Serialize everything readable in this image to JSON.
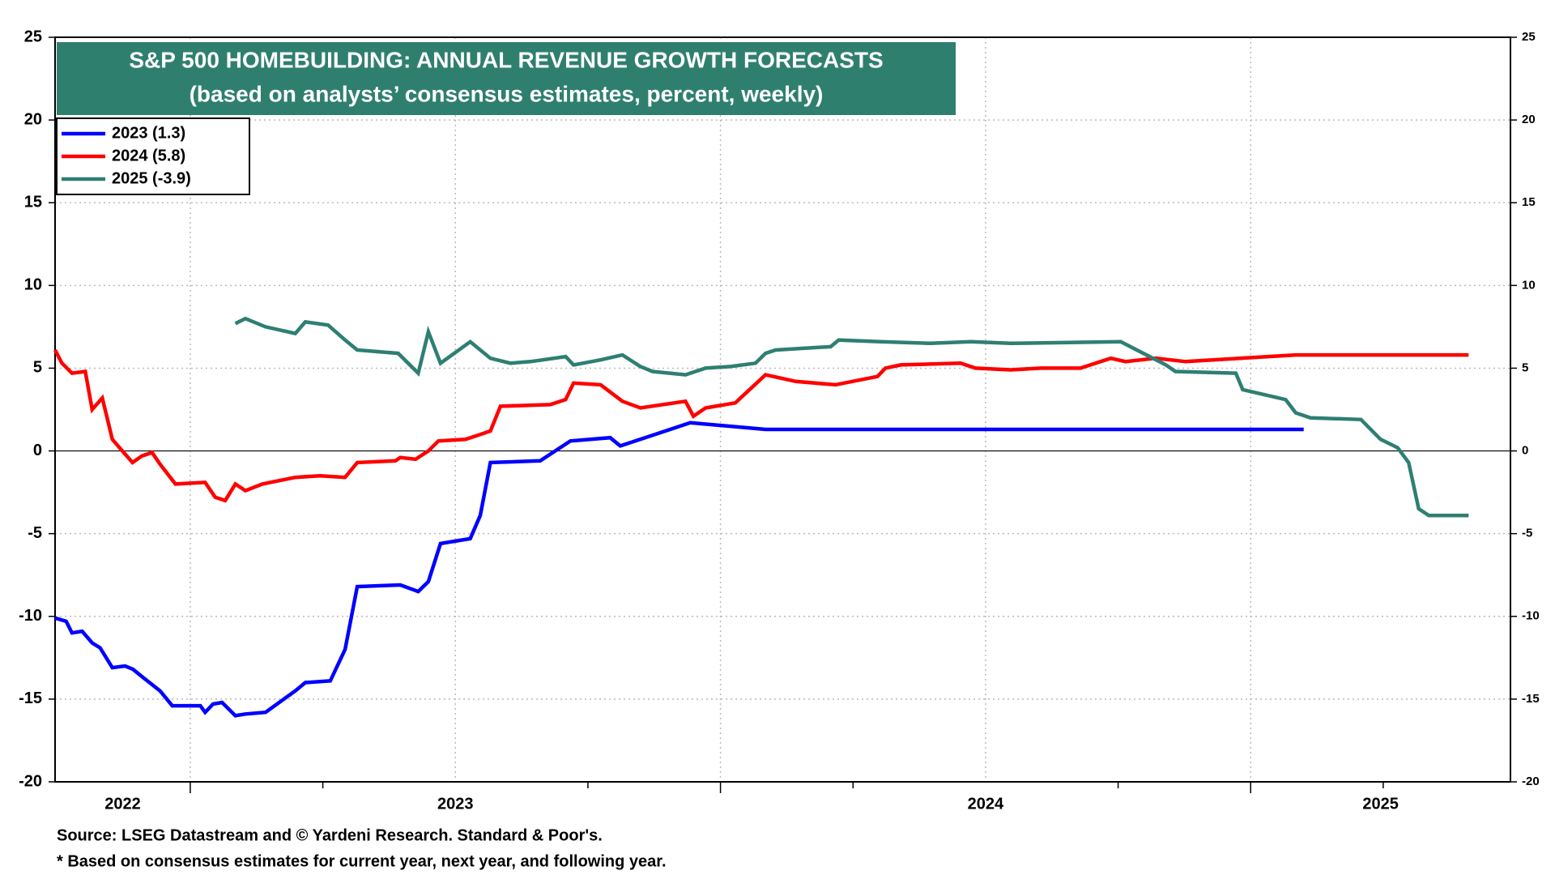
{
  "chart_data": {
    "type": "line",
    "title": "S&P 500 HOMEBUILDING: ANNUAL REVENUE GROWTH FORECASTS",
    "subtitle": "(based on analysts’ consensus estimates, percent, weekly)",
    "notes": [
      "Source: LSEG Datastream and © Yardeni Research. Standard & Poor's.",
      "* Based on consensus estimates for current year, next year, and following year."
    ],
    "xlim": [
      2022.745,
      2025.49
    ],
    "xticks": [
      2022,
      2023,
      2024,
      2025
    ],
    "xgrid": [
      2023,
      2023.5,
      2024,
      2024.5,
      2025
    ],
    "xminorticks": [
      2023.25,
      2023.75,
      2024.25,
      2024.75,
      2025.25
    ],
    "ylim": [
      -20,
      25
    ],
    "yticks": [
      -20,
      -15,
      -10,
      -5,
      0,
      5,
      10,
      15,
      20,
      25
    ],
    "y2lim": [
      -20,
      25
    ],
    "y2ticks": [
      -20,
      -15,
      -10,
      -5,
      0,
      5,
      10,
      15,
      20,
      25
    ],
    "grid": true,
    "legend": "top-left",
    "series": [
      {
        "name": "2023 (1.3)",
        "color": "#0000ff",
        "x": [
          2022.745,
          2022.766,
          2022.777,
          2022.796,
          2022.815,
          2022.83,
          2022.853,
          2022.877,
          2022.892,
          2022.911,
          2022.943,
          2022.966,
          2023.019,
          2023.028,
          2023.043,
          2023.06,
          2023.085,
          2023.104,
          2023.142,
          2023.198,
          2023.217,
          2023.264,
          2023.292,
          2023.315,
          2023.396,
          2023.43,
          2023.449,
          2023.472,
          2023.528,
          2023.547,
          2023.566,
          2023.66,
          2023.717,
          2023.792,
          2023.811,
          2023.858,
          2023.943,
          2024.085,
          2025.1
        ],
        "values": [
          -10.1,
          -10.3,
          -11.0,
          -10.9,
          -11.6,
          -11.9,
          -13.1,
          -13.0,
          -13.2,
          -13.7,
          -14.5,
          -15.4,
          -15.4,
          -15.8,
          -15.3,
          -15.2,
          -16.0,
          -15.9,
          -15.8,
          -14.5,
          -14.0,
          -13.9,
          -12.0,
          -8.2,
          -8.1,
          -8.5,
          -7.9,
          -5.6,
          -5.3,
          -3.9,
          -0.7,
          -0.6,
          0.6,
          0.8,
          0.3,
          0.8,
          1.7,
          1.3,
          1.3
        ]
      },
      {
        "name": "2024 (5.8)",
        "color": "#ff0000",
        "x": [
          2022.745,
          2022.758,
          2022.777,
          2022.802,
          2022.815,
          2022.834,
          2022.853,
          2022.872,
          2022.891,
          2022.909,
          2022.928,
          2022.943,
          2022.972,
          2023.028,
          2023.047,
          2023.066,
          2023.085,
          2023.104,
          2023.136,
          2023.198,
          2023.245,
          2023.292,
          2023.315,
          2023.387,
          2023.396,
          2023.425,
          2023.449,
          2023.468,
          2023.519,
          2023.538,
          2023.566,
          2023.585,
          2023.679,
          2023.708,
          2023.723,
          2023.774,
          2023.815,
          2023.849,
          2023.934,
          2023.949,
          2023.972,
          2024.028,
          2024.085,
          2024.142,
          2024.217,
          2024.296,
          2024.311,
          2024.34,
          2024.453,
          2024.481,
          2024.547,
          2024.604,
          2024.679,
          2024.736,
          2024.764,
          2024.821,
          2024.877,
          2025.085,
          2025.411
        ],
        "values": [
          6.1,
          5.3,
          4.7,
          4.8,
          2.5,
          3.2,
          0.7,
          0.0,
          -0.7,
          -0.3,
          -0.1,
          -0.8,
          -2.0,
          -1.9,
          -2.8,
          -3.0,
          -2.0,
          -2.4,
          -2.0,
          -1.6,
          -1.5,
          -1.6,
          -0.7,
          -0.6,
          -0.4,
          -0.5,
          0.0,
          0.6,
          0.7,
          0.9,
          1.2,
          2.7,
          2.8,
          3.1,
          4.1,
          4.0,
          3.0,
          2.6,
          3.0,
          2.1,
          2.6,
          2.9,
          4.6,
          4.2,
          4.0,
          4.5,
          5.0,
          5.2,
          5.3,
          5.0,
          4.9,
          5.0,
          5.0,
          5.6,
          5.4,
          5.6,
          5.4,
          5.8,
          5.8
        ]
      },
      {
        "name": "2025 (-3.9)",
        "color": "#2e7f72",
        "x": [
          2023.085,
          2023.104,
          2023.142,
          2023.198,
          2023.217,
          2023.26,
          2023.292,
          2023.315,
          2023.392,
          2023.43,
          2023.449,
          2023.472,
          2023.528,
          2023.566,
          2023.604,
          2023.642,
          2023.708,
          2023.723,
          2023.774,
          2023.815,
          2023.849,
          2023.872,
          2023.934,
          2023.972,
          2024.019,
          2024.066,
          2024.085,
          2024.104,
          2024.208,
          2024.223,
          2024.302,
          2024.396,
          2024.472,
          2024.547,
          2024.755,
          2024.84,
          2024.858,
          2024.972,
          2024.985,
          2025.066,
          2025.085,
          2025.113,
          2025.208,
          2025.245,
          2025.277,
          2025.298,
          2025.317,
          2025.336,
          2025.377,
          2025.411
        ],
        "values": [
          7.7,
          8.0,
          7.5,
          7.1,
          7.8,
          7.6,
          6.7,
          6.1,
          5.9,
          4.7,
          7.2,
          5.3,
          6.6,
          5.6,
          5.3,
          5.4,
          5.7,
          5.2,
          5.5,
          5.8,
          5.1,
          4.8,
          4.6,
          5.0,
          5.1,
          5.3,
          5.9,
          6.1,
          6.3,
          6.7,
          6.6,
          6.5,
          6.6,
          6.5,
          6.6,
          5.2,
          4.8,
          4.7,
          3.7,
          3.1,
          2.3,
          2.0,
          1.9,
          0.7,
          0.2,
          -0.7,
          -3.5,
          -3.9,
          -3.9,
          -3.9
        ]
      }
    ]
  }
}
